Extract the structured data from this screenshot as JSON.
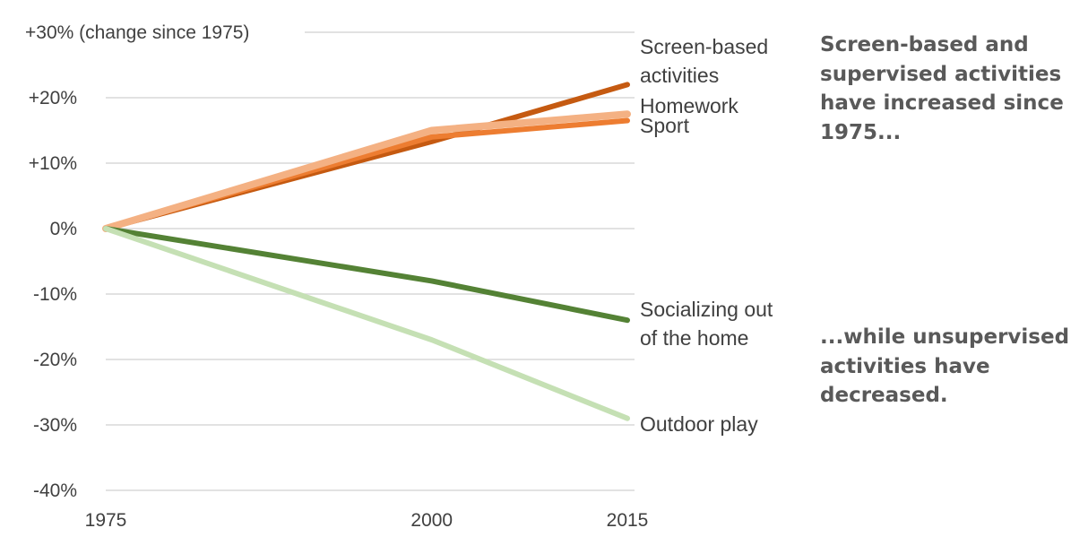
{
  "chart_data": {
    "type": "line",
    "x": [
      1975,
      2000,
      2015
    ],
    "x_tick_labels": [
      "1975",
      "2000",
      "2015"
    ],
    "ylim": [
      -40,
      30
    ],
    "y_ticks": [
      30,
      20,
      10,
      0,
      -10,
      -20,
      -30,
      -40
    ],
    "y_tick_labels": [
      "+30% (change since 1975)",
      "+20%",
      "+10%",
      "0%",
      "-10%",
      "-20%",
      "-30%",
      "-40%"
    ],
    "grid": true,
    "series": [
      {
        "name": "Screen-based activities",
        "label_lines": [
          "Screen-based",
          "activities"
        ],
        "values": [
          0,
          13.3,
          22
        ],
        "color": "#c55a11"
      },
      {
        "name": "Sport",
        "label_lines": [
          "Sport"
        ],
        "values": [
          0,
          14,
          16.5
        ],
        "color": "#ed7d31"
      },
      {
        "name": "Homework",
        "label_lines": [
          "Homework"
        ],
        "values": [
          0,
          15,
          17.5
        ],
        "color": "#f4b183"
      },
      {
        "name": "Socializing out of the home",
        "label_lines": [
          "Socializing out",
          "of the home"
        ],
        "values": [
          0,
          -8,
          -14
        ],
        "color": "#548235"
      },
      {
        "name": "Outdoor play",
        "label_lines": [
          "Outdoor play"
        ],
        "values": [
          0,
          -17,
          -29
        ],
        "color": "#c5e0b4"
      }
    ],
    "annotations": [
      "Screen-based and supervised activities have increased since 1975...",
      "...while unsupervised activities have decreased."
    ]
  }
}
